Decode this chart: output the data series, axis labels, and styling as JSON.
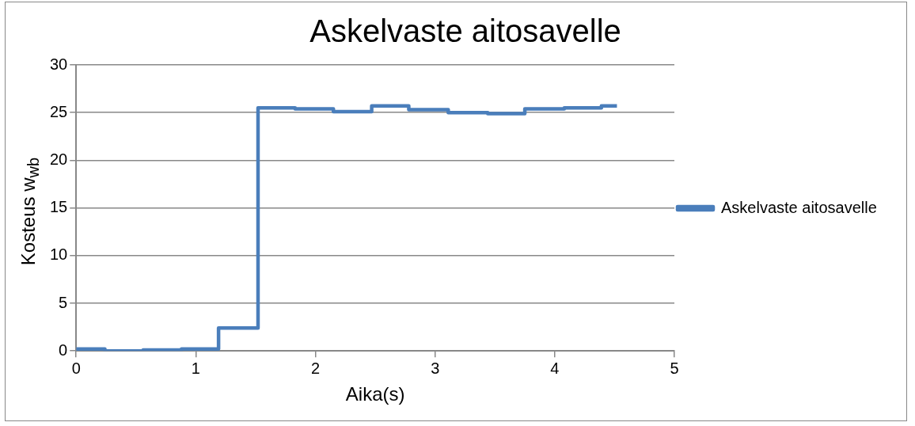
{
  "chart_data": {
    "type": "step",
    "title": "Askelvaste aitosavelle",
    "xlabel": "Aika(s)",
    "ylabel": "Kosteus w$_{wb}$",
    "series": [
      {
        "name": "Askelvaste aitosavelle",
        "color": "#4a7ebb",
        "x": [
          0,
          0.24,
          0.56,
          0.88,
          1.19,
          1.52,
          1.83,
          2.15,
          2.47,
          2.78,
          3.11,
          3.44,
          3.75,
          4.08,
          4.39,
          4.52
        ],
        "values": [
          0.2,
          0,
          0.1,
          0.2,
          2.4,
          25.5,
          25.4,
          25.1,
          25.7,
          25.3,
          25.0,
          24.9,
          25.4,
          25.5,
          25.7,
          25.7
        ]
      }
    ],
    "xlim": [
      0,
      5
    ],
    "xticks": [
      0,
      1,
      2,
      3,
      4,
      5
    ],
    "ylim": [
      0,
      30
    ],
    "yticks": [
      0,
      5,
      10,
      15,
      20,
      25,
      30
    ],
    "grid": "y",
    "legend": "right"
  }
}
